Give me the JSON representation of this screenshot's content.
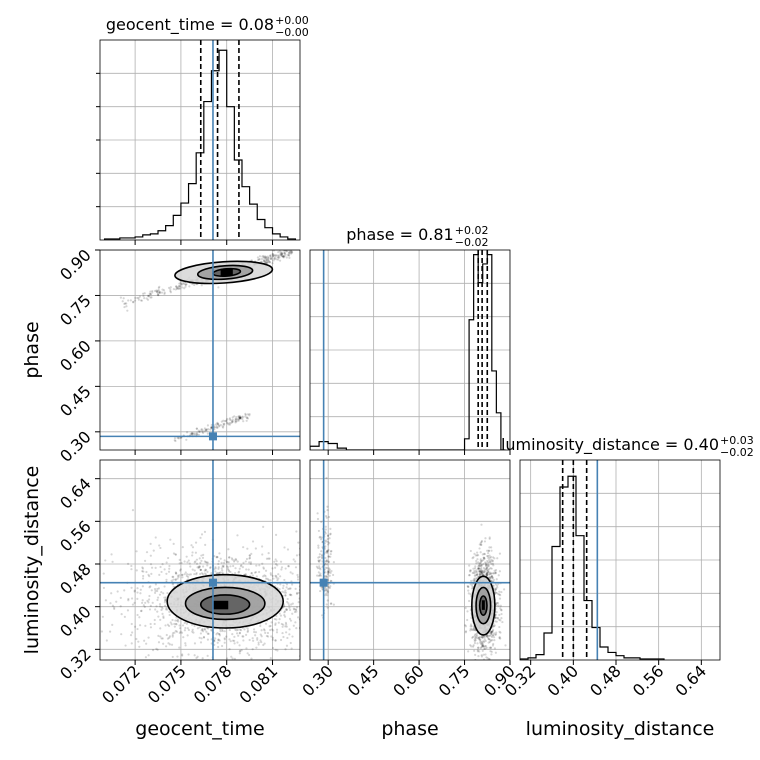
{
  "chart_data": {
    "type": "corner",
    "grid": true,
    "colors": {
      "truth": "#4682b4",
      "hist": "#000000",
      "points": "#000000",
      "grid": "#b0b0b0"
    },
    "parameters": [
      {
        "name": "geocent_time",
        "label": "geocent_time",
        "range": [
          0.0697,
          0.0828
        ],
        "ticks": [
          "0.072",
          "0.075",
          "0.078",
          "0.081"
        ],
        "tick_values": [
          0.072,
          0.075,
          0.078,
          0.081
        ],
        "truth": 0.0771,
        "title": {
          "prefix": "geocent_time = 0.08",
          "plus": "+0.00",
          "minus": "−0.00"
        }
      },
      {
        "name": "phase",
        "label": "phase",
        "range": [
          0.24,
          0.9
        ],
        "ticks": [
          "0.30",
          "0.45",
          "0.60",
          "0.75",
          "0.90"
        ],
        "tick_values": [
          0.3,
          0.45,
          0.6,
          0.75,
          0.9
        ],
        "truth": 0.285,
        "title": {
          "prefix": "phase = 0.81",
          "plus": "+0.02",
          "minus": "−0.02"
        }
      },
      {
        "name": "luminosity_distance",
        "label": "luminosity_distance",
        "range": [
          0.3,
          0.675
        ],
        "ticks": [
          "0.32",
          "0.40",
          "0.48",
          "0.56",
          "0.64"
        ],
        "tick_values": [
          0.32,
          0.4,
          0.48,
          0.56,
          0.64
        ],
        "truth": 0.445,
        "title": {
          "prefix": "luminosity_distance = 0.40",
          "plus": "+0.03",
          "minus": "−0.02"
        }
      }
    ],
    "histograms": [
      {
        "param": "geocent_time",
        "edges": [
          0.07,
          0.0705,
          0.071,
          0.0715,
          0.072,
          0.0725,
          0.073,
          0.0735,
          0.074,
          0.0745,
          0.075,
          0.0755,
          0.076,
          0.0765,
          0.077,
          0.0775,
          0.078,
          0.0785,
          0.079,
          0.0795,
          0.08,
          0.0805,
          0.081,
          0.0815,
          0.082,
          0.0825
        ],
        "counts": [
          1,
          1,
          2,
          2,
          3,
          5,
          6,
          9,
          14,
          24,
          36,
          55,
          85,
          135,
          165,
          185,
          130,
          78,
          52,
          35,
          20,
          12,
          6,
          3,
          1
        ],
        "ylim": 195,
        "quantiles": [
          0.0763,
          0.0774,
          0.0788
        ]
      },
      {
        "param": "phase",
        "edges": [
          0.24,
          0.27,
          0.3,
          0.33,
          0.36,
          0.39,
          0.42,
          0.45,
          0.48,
          0.51,
          0.54,
          0.57,
          0.6,
          0.63,
          0.66,
          0.69,
          0.72,
          0.75,
          0.765,
          0.78,
          0.795,
          0.81,
          0.825,
          0.84,
          0.855,
          0.87,
          0.885
        ],
        "counts": [
          4,
          9,
          7,
          2,
          0,
          0,
          0,
          0,
          0,
          0,
          0,
          0,
          0,
          0,
          0,
          0,
          0,
          12,
          140,
          210,
          180,
          200,
          210,
          85,
          40,
          0
        ],
        "ylim": 215,
        "quantiles": [
          0.795,
          0.808,
          0.825
        ]
      },
      {
        "param": "luminosity_distance",
        "edges": [
          0.3,
          0.315,
          0.33,
          0.345,
          0.36,
          0.375,
          0.39,
          0.405,
          0.42,
          0.435,
          0.45,
          0.465,
          0.48,
          0.495,
          0.51,
          0.525,
          0.54,
          0.555,
          0.57
        ],
        "counts": [
          1,
          2,
          5,
          25,
          105,
          160,
          170,
          115,
          55,
          30,
          12,
          7,
          4,
          2,
          2,
          1,
          1,
          1
        ],
        "ylim": 185,
        "quantiles": [
          0.38,
          0.4,
          0.425
        ]
      }
    ],
    "pairs": [
      {
        "x": "geocent_time",
        "y": "phase",
        "clusters": [
          {
            "type": "line",
            "x0": 0.071,
            "y0": 0.72,
            "x1": 0.0823,
            "y1": 0.895,
            "spread": 0.008,
            "count": 380
          },
          {
            "type": "line",
            "x0": 0.0745,
            "y0": 0.27,
            "x1": 0.0795,
            "y1": 0.355,
            "spread": 0.006,
            "count": 140
          },
          {
            "type": "blob",
            "cx": 0.0778,
            "cy": 0.825,
            "sx": 0.0006,
            "sy": 0.012,
            "count": 160
          }
        ],
        "contours": [
          {
            "cx": 0.0778,
            "cy": 0.826,
            "rx": 0.0032,
            "ry": 0.035,
            "tilt": 0.9
          },
          {
            "cx": 0.0779,
            "cy": 0.826,
            "rx": 0.0018,
            "ry": 0.022,
            "tilt": 0.9
          },
          {
            "cx": 0.078,
            "cy": 0.826,
            "rx": 0.0009,
            "ry": 0.012,
            "tilt": 0.9
          }
        ],
        "hotspot": {
          "x": 0.078,
          "y": 0.826,
          "w": 0.0008,
          "h": 0.024
        }
      },
      {
        "x": "geocent_time",
        "y": "luminosity_distance",
        "clusters": [
          {
            "type": "blob",
            "cx": 0.0778,
            "cy": 0.41,
            "sx": 0.003,
            "sy": 0.048,
            "count": 1700
          }
        ],
        "contours": [
          {
            "cx": 0.0779,
            "cy": 0.41,
            "rx": 0.0038,
            "ry": 0.05,
            "tilt": 0
          },
          {
            "cx": 0.0779,
            "cy": 0.406,
            "rx": 0.0026,
            "ry": 0.03,
            "tilt": 0
          },
          {
            "cx": 0.0779,
            "cy": 0.404,
            "rx": 0.0016,
            "ry": 0.018,
            "tilt": 0
          }
        ],
        "hotspot": {
          "x": 0.0776,
          "y": 0.403,
          "w": 0.001,
          "h": 0.016
        }
      },
      {
        "x": "phase",
        "y": "luminosity_distance",
        "clusters": [
          {
            "type": "blob",
            "cx": 0.29,
            "cy": 0.48,
            "sx": 0.012,
            "sy": 0.045,
            "count": 180
          },
          {
            "type": "blob",
            "cx": 0.815,
            "cy": 0.405,
            "sx": 0.022,
            "sy": 0.045,
            "count": 1300
          }
        ],
        "contours": [
          {
            "cx": 0.812,
            "cy": 0.402,
            "rx": 0.038,
            "ry": 0.055,
            "tilt": 0
          },
          {
            "cx": 0.812,
            "cy": 0.402,
            "rx": 0.024,
            "ry": 0.034,
            "tilt": 0
          },
          {
            "cx": 0.812,
            "cy": 0.402,
            "rx": 0.012,
            "ry": 0.018,
            "tilt": 0
          }
        ],
        "hotspot": {
          "x": 0.812,
          "y": 0.403,
          "w": 0.01,
          "h": 0.018
        }
      }
    ]
  }
}
